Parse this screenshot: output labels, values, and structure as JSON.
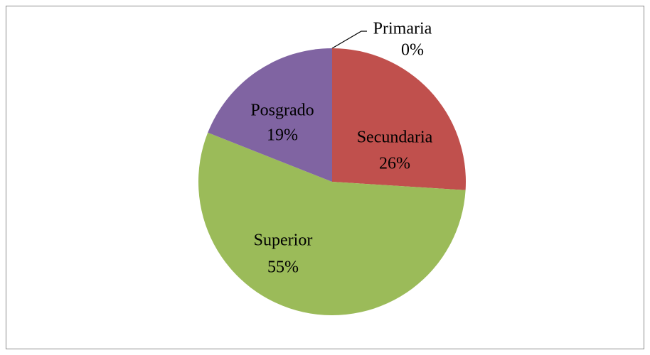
{
  "chart_data": {
    "type": "pie",
    "categories": [
      "Primaria",
      "Secundaria",
      "Superior",
      "Posgrado"
    ],
    "values": [
      0,
      26,
      55,
      19
    ],
    "value_labels": [
      "0%",
      "26%",
      "55%",
      "19%"
    ],
    "colors": [
      "#4f81bd",
      "#c0504d",
      "#9bbb59",
      "#8064a2"
    ]
  }
}
